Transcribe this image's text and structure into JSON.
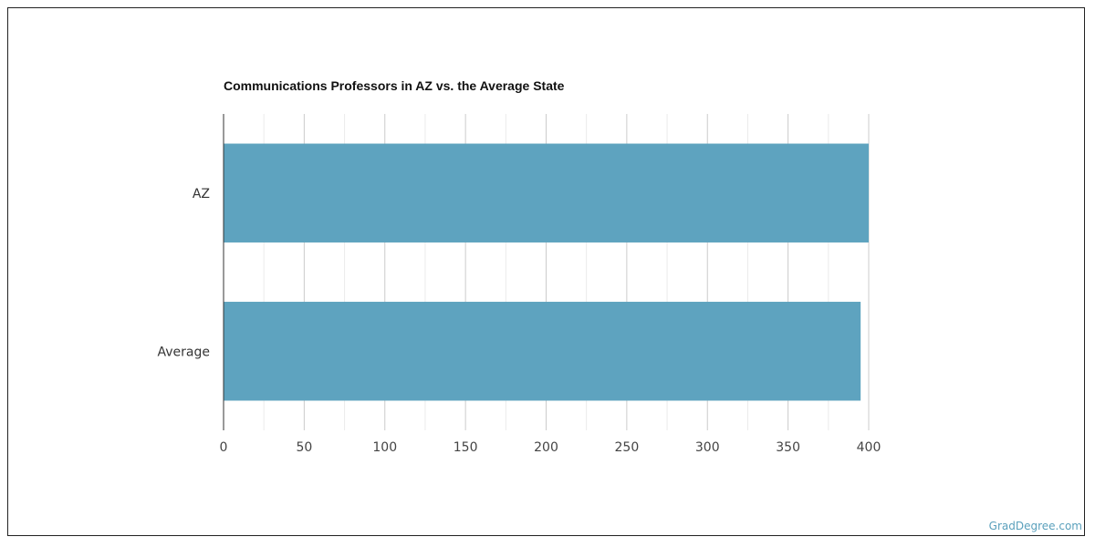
{
  "chart_data": {
    "type": "bar",
    "orientation": "horizontal",
    "title": "Communications Professors in AZ vs. the Average State",
    "categories": [
      "AZ",
      "Average"
    ],
    "values": [
      400,
      395
    ],
    "xlabel": "",
    "ylabel": "",
    "xlim": [
      0,
      400
    ],
    "xticks": [
      0,
      50,
      100,
      150,
      200,
      250,
      300,
      350,
      400
    ],
    "grid": true,
    "legend": "none",
    "bar_color": "#5ea3bf"
  },
  "watermark": "GradDegree.com"
}
